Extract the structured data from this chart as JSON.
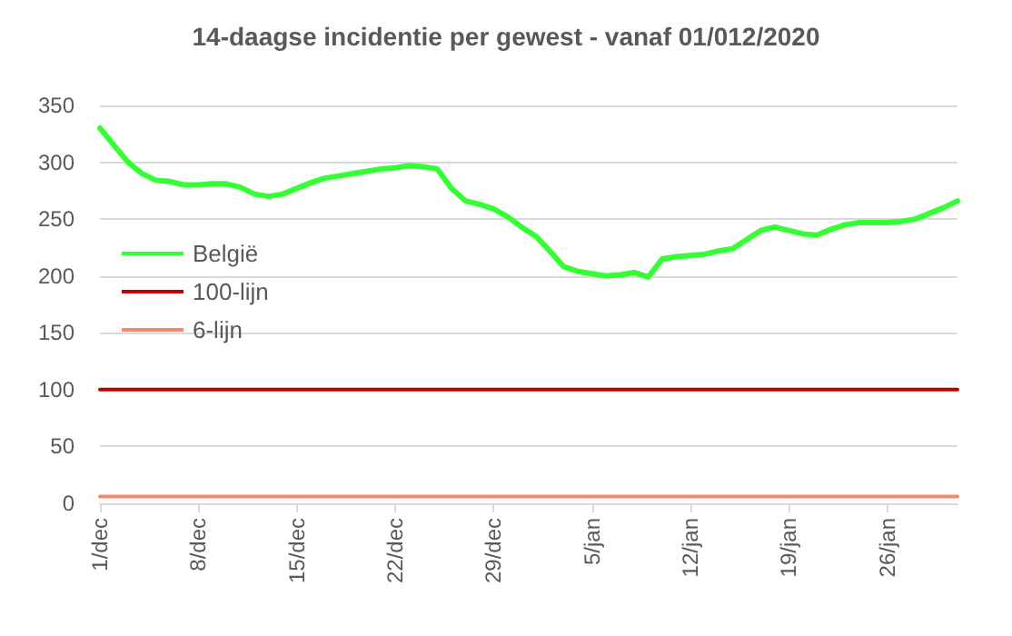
{
  "chart_data": {
    "type": "line",
    "title": "14-daagse incidentie per gewest - vanaf 01/012/2020",
    "categories": [
      "1/dec",
      null,
      null,
      null,
      null,
      null,
      null,
      "8/dec",
      null,
      null,
      null,
      null,
      null,
      null,
      "15/dec",
      null,
      null,
      null,
      null,
      null,
      null,
      "22/dec",
      null,
      null,
      null,
      null,
      null,
      null,
      "29/dec",
      null,
      null,
      null,
      null,
      null,
      null,
      "5/jan",
      null,
      null,
      null,
      null,
      null,
      null,
      "12/jan",
      null,
      null,
      null,
      null,
      null,
      null,
      "19/jan",
      null,
      null,
      null,
      null,
      null,
      null,
      "26/jan",
      null,
      null,
      null,
      null,
      null
    ],
    "series": [
      {
        "name": "België",
        "color": "#33ff33",
        "values": [
          330,
          315,
          300,
          290,
          284,
          283,
          280,
          280,
          281,
          281,
          278,
          272,
          270,
          272,
          277,
          282,
          286,
          288,
          290,
          292,
          294,
          295,
          297,
          296,
          294,
          277,
          266,
          263,
          259,
          252,
          243,
          235,
          222,
          208,
          204,
          202,
          200,
          201,
          203,
          199,
          215,
          217,
          218,
          219,
          222,
          224,
          232,
          240,
          243,
          240,
          237,
          236,
          241,
          245,
          247,
          247,
          247,
          248,
          250,
          255,
          260,
          266
        ]
      },
      {
        "name": "100-lijn",
        "color": "#c00000",
        "values": [
          100,
          100,
          100,
          100,
          100,
          100,
          100,
          100,
          100,
          100,
          100,
          100,
          100,
          100,
          100,
          100,
          100,
          100,
          100,
          100,
          100,
          100,
          100,
          100,
          100,
          100,
          100,
          100,
          100,
          100,
          100,
          100,
          100,
          100,
          100,
          100,
          100,
          100,
          100,
          100,
          100,
          100,
          100,
          100,
          100,
          100,
          100,
          100,
          100,
          100,
          100,
          100,
          100,
          100,
          100,
          100,
          100,
          100,
          100,
          100,
          100,
          100
        ]
      },
      {
        "name": "6-lijn",
        "color": "#f4896b",
        "values": [
          6,
          6,
          6,
          6,
          6,
          6,
          6,
          6,
          6,
          6,
          6,
          6,
          6,
          6,
          6,
          6,
          6,
          6,
          6,
          6,
          6,
          6,
          6,
          6,
          6,
          6,
          6,
          6,
          6,
          6,
          6,
          6,
          6,
          6,
          6,
          6,
          6,
          6,
          6,
          6,
          6,
          6,
          6,
          6,
          6,
          6,
          6,
          6,
          6,
          6,
          6,
          6,
          6,
          6,
          6,
          6,
          6,
          6,
          6,
          6,
          6,
          6
        ]
      }
    ],
    "ylim": [
      0,
      350
    ],
    "yticks": [
      0,
      50,
      100,
      150,
      200,
      250,
      300,
      350
    ],
    "grid": "y",
    "legend": "left",
    "marker": "none",
    "line_style": "solid"
  }
}
